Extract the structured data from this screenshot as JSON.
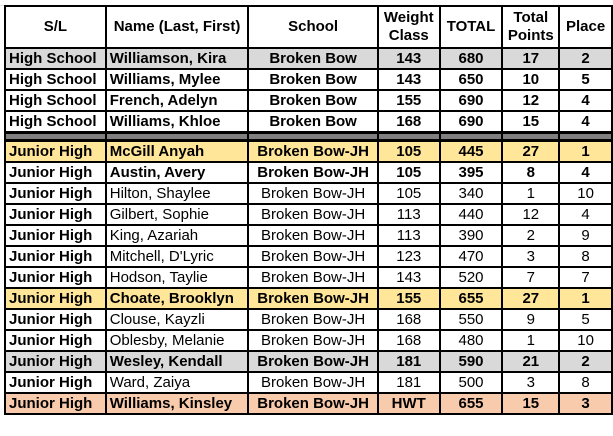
{
  "headers": [
    "S/L",
    "Name (Last, First)",
    "School",
    "Weight Class",
    "TOTAL",
    "Total Points",
    "Place"
  ],
  "high_school_rows": [
    {
      "sl": "High School",
      "name": "Williamson, Kira",
      "school": "Broken Bow",
      "weight": "143",
      "total": "680",
      "points": "17",
      "place": "2",
      "fill": "#d9d9d9",
      "bold": true
    },
    {
      "sl": "High School",
      "name": "Williams, Mylee",
      "school": "Broken Bow",
      "weight": "143",
      "total": "650",
      "points": "10",
      "place": "5",
      "fill": "#ffffff",
      "bold": true
    },
    {
      "sl": "High School",
      "name": "French, Adelyn",
      "school": "Broken Bow",
      "weight": "155",
      "total": "690",
      "points": "12",
      "place": "4",
      "fill": "#ffffff",
      "bold": true
    },
    {
      "sl": "High School",
      "name": "Williams, Khloe",
      "school": "Broken Bow",
      "weight": "168",
      "total": "690",
      "points": "15",
      "place": "4",
      "fill": "#ffffff",
      "bold": true
    }
  ],
  "junior_high_rows": [
    {
      "sl": "Junior High",
      "name": "McGill Anyah",
      "school": "Broken Bow-JH",
      "weight": "105",
      "total": "445",
      "points": "27",
      "place": "1",
      "fill": "#ffe699",
      "bold": true
    },
    {
      "sl": "Junior High",
      "name": "Austin, Avery",
      "school": "Broken Bow-JH",
      "weight": "105",
      "total": "395",
      "points": "8",
      "place": "4",
      "fill": "#ffffff",
      "bold": true
    },
    {
      "sl": "Junior High",
      "name": "Hilton, Shaylee",
      "school": "Broken Bow-JH",
      "weight": "105",
      "total": "340",
      "points": "1",
      "place": "10",
      "fill": "#ffffff",
      "bold": false
    },
    {
      "sl": "Junior High",
      "name": "Gilbert, Sophie",
      "school": "Broken Bow-JH",
      "weight": "113",
      "total": "440",
      "points": "12",
      "place": "4",
      "fill": "#ffffff",
      "bold": false
    },
    {
      "sl": "Junior High",
      "name": "King, Azariah",
      "school": "Broken Bow-JH",
      "weight": "113",
      "total": "390",
      "points": "2",
      "place": "9",
      "fill": "#ffffff",
      "bold": false
    },
    {
      "sl": "Junior High",
      "name": "Mitchell, D'Lyric",
      "school": "Broken Bow-JH",
      "weight": "123",
      "total": "470",
      "points": "3",
      "place": "8",
      "fill": "#ffffff",
      "bold": false
    },
    {
      "sl": "Junior High",
      "name": "Hodson, Taylie",
      "school": "Broken Bow-JH",
      "weight": "143",
      "total": "520",
      "points": "7",
      "place": "7",
      "fill": "#ffffff",
      "bold": false
    },
    {
      "sl": "Junior High",
      "name": "Choate, Brooklyn",
      "school": "Broken Bow-JH",
      "weight": "155",
      "total": "655",
      "points": "27",
      "place": "1",
      "fill": "#ffe699",
      "bold": true
    },
    {
      "sl": "Junior High",
      "name": "Clouse, Kayzli",
      "school": "Broken Bow-JH",
      "weight": "168",
      "total": "550",
      "points": "9",
      "place": "5",
      "fill": "#ffffff",
      "bold": false
    },
    {
      "sl": "Junior High",
      "name": "Oblesby, Melanie",
      "school": "Broken Bow-JH",
      "weight": "168",
      "total": "480",
      "points": "1",
      "place": "10",
      "fill": "#ffffff",
      "bold": false
    },
    {
      "sl": "Junior High",
      "name": "Wesley, Kendall",
      "school": "Broken Bow-JH",
      "weight": "181",
      "total": "590",
      "points": "21",
      "place": "2",
      "fill": "#d9d9d9",
      "bold": true
    },
    {
      "sl": "Junior High",
      "name": "Ward, Zaiya",
      "school": "Broken Bow-JH",
      "weight": "181",
      "total": "500",
      "points": "3",
      "place": "8",
      "fill": "#ffffff",
      "bold": false
    },
    {
      "sl": "Junior High",
      "name": "Williams, Kinsley",
      "school": "Broken Bow-JH",
      "weight": "HWT",
      "total": "655",
      "points": "15",
      "place": "3",
      "fill": "#f8cbad",
      "bold": true
    }
  ]
}
